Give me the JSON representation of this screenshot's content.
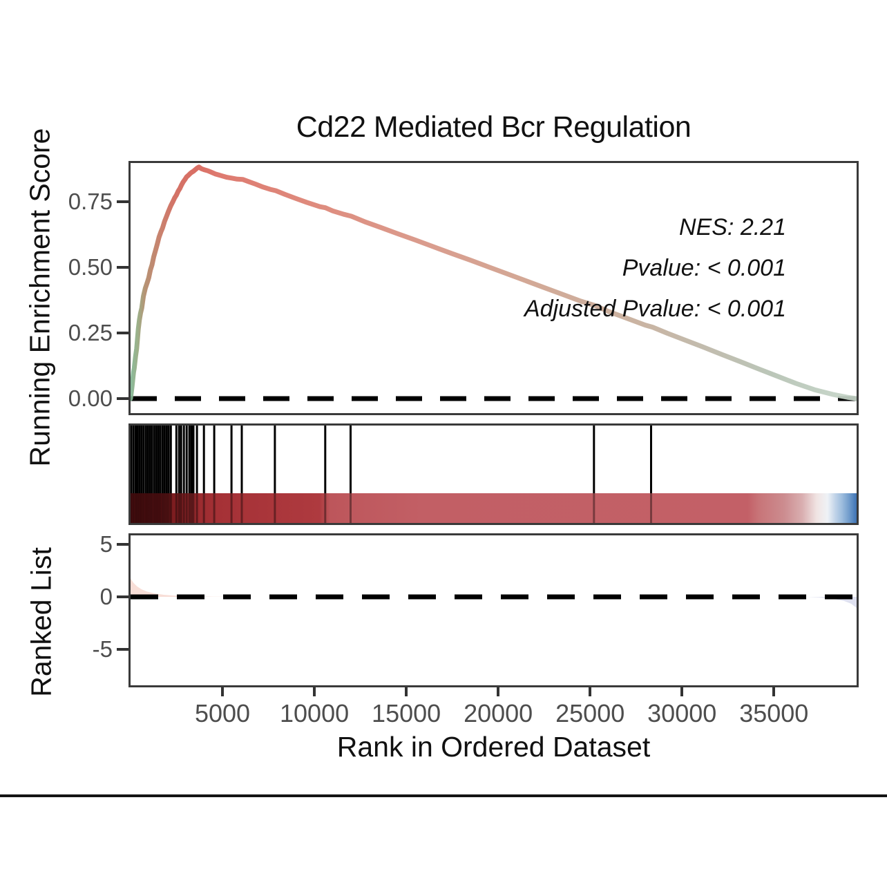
{
  "title": "Cd22 Mediated Bcr Regulation",
  "annotations": {
    "nes": "NES: 2.21",
    "pvalue": "Pvalue: < 0.001",
    "adj_pvalue": "Adjusted Pvalue: < 0.001"
  },
  "axes": {
    "es_ylabel": "Running Enrichment Score",
    "rank_ylabel": "Ranked List",
    "xlabel": "Rank in Ordered Dataset"
  },
  "chart_data": [
    {
      "type": "line",
      "name": "running-enrichment-score",
      "title": "Cd22 Mediated Bcr Regulation",
      "ylabel": "Running Enrichment Score",
      "xlim": [
        0,
        39500
      ],
      "ylim": [
        -0.06,
        0.91
      ],
      "yticks": [
        {
          "label": "0.75",
          "value": 0.75
        },
        {
          "label": "0.50",
          "value": 0.5
        },
        {
          "label": "0.25",
          "value": 0.25
        },
        {
          "label": "0.00",
          "value": 0.0
        }
      ],
      "zero_line": {
        "style": "dashed",
        "color": "#000000"
      },
      "annotations": [
        "NES: 2.21",
        "Pvalue: < 0.001",
        "Adjusted Pvalue: < 0.001"
      ],
      "series": [
        {
          "name": "running_es",
          "points": [
            [
              0,
              0
            ],
            [
              80,
              0.045
            ],
            [
              160,
              0.1
            ],
            [
              200,
              0.115
            ],
            [
              270,
              0.16
            ],
            [
              330,
              0.19
            ],
            [
              420,
              0.265
            ],
            [
              480,
              0.3
            ],
            [
              540,
              0.325
            ],
            [
              610,
              0.345
            ],
            [
              700,
              0.39
            ],
            [
              800,
              0.42
            ],
            [
              900,
              0.44
            ],
            [
              990,
              0.46
            ],
            [
              1080,
              0.49
            ],
            [
              1170,
              0.51
            ],
            [
              1260,
              0.54
            ],
            [
              1360,
              0.565
            ],
            [
              1460,
              0.59
            ],
            [
              1550,
              0.615
            ],
            [
              1650,
              0.635
            ],
            [
              1740,
              0.65
            ],
            [
              1850,
              0.675
            ],
            [
              1960,
              0.695
            ],
            [
              2070,
              0.715
            ],
            [
              2190,
              0.735
            ],
            [
              2300,
              0.75
            ],
            [
              2400,
              0.765
            ],
            [
              2490,
              0.775
            ],
            [
              2590,
              0.79
            ],
            [
              2680,
              0.8
            ],
            [
              2780,
              0.815
            ],
            [
              2860,
              0.825
            ],
            [
              2960,
              0.835
            ],
            [
              3050,
              0.845
            ],
            [
              3140,
              0.85
            ],
            [
              3240,
              0.857
            ],
            [
              3330,
              0.862
            ],
            [
              3420,
              0.866
            ],
            [
              3520,
              0.872
            ],
            [
              3620,
              0.878
            ],
            [
              3720,
              0.882
            ],
            [
              3850,
              0.876
            ],
            [
              4000,
              0.872
            ],
            [
              4200,
              0.868
            ],
            [
              4400,
              0.862
            ],
            [
              4600,
              0.856
            ],
            [
              4800,
              0.852
            ],
            [
              5000,
              0.848
            ],
            [
              5250,
              0.843
            ],
            [
              5500,
              0.84
            ],
            [
              5800,
              0.836
            ],
            [
              6100,
              0.835
            ],
            [
              6400,
              0.827
            ],
            [
              6800,
              0.817
            ],
            [
              7200,
              0.806
            ],
            [
              7600,
              0.797
            ],
            [
              7900,
              0.792
            ],
            [
              8400,
              0.778
            ],
            [
              9000,
              0.762
            ],
            [
              9600,
              0.747
            ],
            [
              10300,
              0.731
            ],
            [
              10600,
              0.727
            ],
            [
              11000,
              0.715
            ],
            [
              11600,
              0.702
            ],
            [
              12000,
              0.695
            ],
            [
              12800,
              0.672
            ],
            [
              13600,
              0.652
            ],
            [
              14500,
              0.629
            ],
            [
              15500,
              0.604
            ],
            [
              16500,
              0.578
            ],
            [
              17500,
              0.552
            ],
            [
              18500,
              0.527
            ],
            [
              19500,
              0.501
            ],
            [
              20500,
              0.475
            ],
            [
              21500,
              0.449
            ],
            [
              22500,
              0.423
            ],
            [
              23500,
              0.397
            ],
            [
              24500,
              0.371
            ],
            [
              25250,
              0.355
            ],
            [
              26000,
              0.332
            ],
            [
              27000,
              0.306
            ],
            [
              28000,
              0.28
            ],
            [
              28400,
              0.272
            ],
            [
              29200,
              0.249
            ],
            [
              30200,
              0.222
            ],
            [
              31200,
              0.195
            ],
            [
              32200,
              0.167
            ],
            [
              33200,
              0.14
            ],
            [
              34200,
              0.112
            ],
            [
              35200,
              0.085
            ],
            [
              36200,
              0.058
            ],
            [
              37200,
              0.034
            ],
            [
              38200,
              0.016
            ],
            [
              39000,
              0.005
            ],
            [
              39500,
              0
            ]
          ]
        }
      ]
    },
    {
      "type": "heatmap",
      "name": "gene-hit-rug-and-rank-colorbar",
      "hit_ranks": [
        40,
        160,
        280,
        390,
        500,
        610,
        720,
        840,
        950,
        1060,
        1170,
        1290,
        1400,
        1510,
        1620,
        1740,
        1850,
        1960,
        2070,
        2190,
        2490,
        2640,
        2750,
        2900,
        3050,
        3200,
        3310,
        3420,
        3610,
        3990,
        4550,
        5490,
        6050,
        7850,
        10590,
        11970,
        25210,
        28320
      ],
      "colorbar_stops": [
        {
          "pos": 0,
          "color": "#5e1114"
        },
        {
          "pos": 4,
          "color": "#6b1518"
        },
        {
          "pos": 6,
          "color": "#7e1d20"
        },
        {
          "pos": 9,
          "color": "#992a2e"
        },
        {
          "pos": 12,
          "color": "#a53136"
        },
        {
          "pos": 26,
          "color": "#ae3a3f"
        },
        {
          "pos": 27.5,
          "color": "#bd565b"
        },
        {
          "pos": 40,
          "color": "#c25f65"
        },
        {
          "pos": 85,
          "color": "#c36067"
        },
        {
          "pos": 86.5,
          "color": "#c87478"
        },
        {
          "pos": 90,
          "color": "#cc8c8f"
        },
        {
          "pos": 92.5,
          "color": "#d9aeb0"
        },
        {
          "pos": 94.5,
          "color": "#f0e4e3"
        },
        {
          "pos": 96,
          "color": "#eff2f6"
        },
        {
          "pos": 97,
          "color": "#c3d5e9"
        },
        {
          "pos": 98,
          "color": "#9cbcdd"
        },
        {
          "pos": 99,
          "color": "#6f9bcb"
        },
        {
          "pos": 100,
          "color": "#3e73b4"
        }
      ]
    },
    {
      "type": "area",
      "name": "ranked-list-metric",
      "ylabel": "Ranked List",
      "xlabel": "Rank in Ordered Dataset",
      "xlim": [
        0,
        39500
      ],
      "ylim": [
        -8.5,
        6
      ],
      "yticks": [
        {
          "label": "5",
          "value": 5
        },
        {
          "label": "0",
          "value": 0
        },
        {
          "label": "-5",
          "value": -5
        }
      ],
      "xticks": [
        {
          "label": "5000",
          "value": 5000
        },
        {
          "label": "10000",
          "value": 10000
        },
        {
          "label": "15000",
          "value": 15000
        },
        {
          "label": "20000",
          "value": 20000
        },
        {
          "label": "25000",
          "value": 25000
        },
        {
          "label": "30000",
          "value": 30000
        },
        {
          "label": "35000",
          "value": 35000
        }
      ],
      "zero_line": {
        "style": "dashed",
        "color": "#000000"
      },
      "positive_area": [
        [
          0,
          1.75
        ],
        [
          150,
          1.35
        ],
        [
          350,
          1.0
        ],
        [
          600,
          0.72
        ],
        [
          900,
          0.5
        ],
        [
          1300,
          0.33
        ],
        [
          1800,
          0.2
        ],
        [
          2400,
          0.12
        ],
        [
          3200,
          0.06
        ],
        [
          4500,
          0.02
        ],
        [
          6000,
          0.005
        ],
        [
          7000,
          0
        ]
      ],
      "negative_area": [
        [
          36800,
          0
        ],
        [
          37500,
          -0.06
        ],
        [
          38200,
          -0.18
        ],
        [
          38800,
          -0.38
        ],
        [
          39200,
          -0.65
        ],
        [
          39500,
          -1.05
        ]
      ]
    }
  ],
  "style": {
    "curve_gradient": [
      {
        "pos": 0,
        "color": "#7fb694"
      },
      {
        "pos": 1,
        "color": "#94a97f"
      },
      {
        "pos": 2,
        "color": "#b08968"
      },
      {
        "pos": 4,
        "color": "#c47862"
      },
      {
        "pos": 6,
        "color": "#cf675a"
      },
      {
        "pos": 9,
        "color": "#d66257"
      },
      {
        "pos": 12,
        "color": "#db6e63"
      },
      {
        "pos": 25,
        "color": "#dc8172"
      },
      {
        "pos": 40,
        "color": "#d79383"
      },
      {
        "pos": 55,
        "color": "#cfa18d"
      },
      {
        "pos": 70,
        "color": "#c5ad9a"
      },
      {
        "pos": 80,
        "color": "#bcb7a8"
      },
      {
        "pos": 88,
        "color": "#b5c1b2"
      },
      {
        "pos": 94,
        "color": "#bccbbd"
      },
      {
        "pos": 100,
        "color": "#c7d6c9"
      }
    ],
    "positive_area_fill": "#f8ded7",
    "negative_area_fill": "#dfe1f0",
    "hit_tick_color": "#000000",
    "border_color": "#3a3a3a",
    "tick_label_color": "#4d4d4d"
  }
}
